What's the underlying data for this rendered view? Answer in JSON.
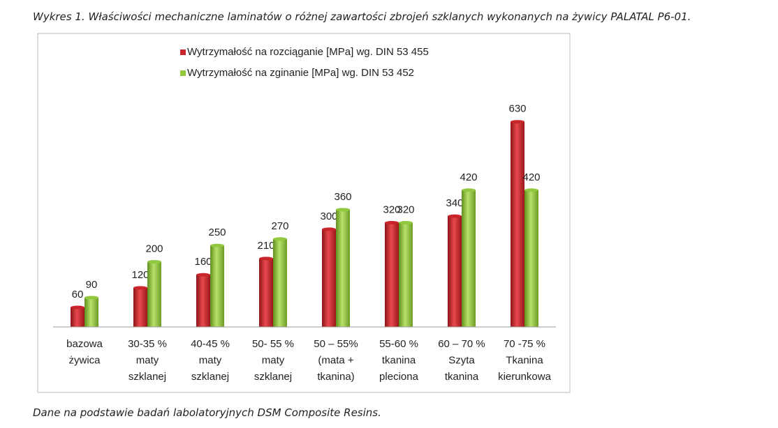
{
  "caption": "Wykres 1. Właściwości mechaniczne laminatów o różnej zawartości zbrojeń szklanych wykonanych na żywicy PALATAL P6-01.",
  "note": "Dane na podstawie badań labolatoryjnych DSM Composite Resins.",
  "chart_data": {
    "type": "bar",
    "categories": [
      "bazowa\nżywica",
      "30-35 %\nmaty\nszklanej",
      "40-45 %\nmaty\nszklanej",
      "50- 55 %\nmaty\nszklanej",
      "50 – 55%\n(mata +\ntkanina)",
      "55-60 %\ntkanina\npleciona",
      "60 – 70 %\nSzyta\ntkanina",
      "70 -75 %\nTkanina\nkierunkowa"
    ],
    "series": [
      {
        "name": "Wytrzymałość na rozciąganie [MPa] wg. DIN 53 455",
        "color": "#c9252b",
        "values": [
          60,
          120,
          160,
          210,
          300,
          320,
          340,
          630
        ]
      },
      {
        "name": "Wytrzymałość na zginanie [MPa] wg. DIN 53 452",
        "color": "#92c83e",
        "values": [
          90,
          200,
          250,
          270,
          360,
          320,
          420,
          420
        ]
      }
    ],
    "ylim": [
      0,
      700
    ]
  }
}
